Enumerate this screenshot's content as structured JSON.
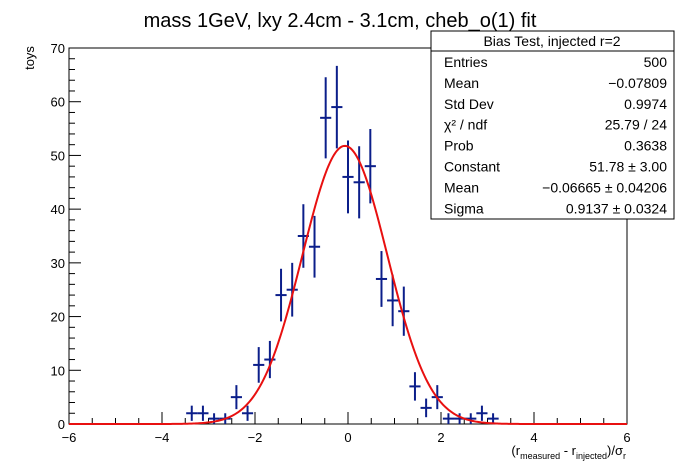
{
  "chart_data": {
    "type": "histogram-with-fit",
    "title": "mass 1GeV, lxy 2.4cm - 3.1cm, cheb_o(1) fit",
    "ylabel": "toys",
    "xlabel": {
      "open": "(r",
      "sub1": "measured",
      "mid": " - r",
      "sub2": "injected",
      "close": ")/σ",
      "sub3": "r"
    },
    "xlim": [
      -6,
      6
    ],
    "ylim": [
      0,
      70
    ],
    "xticks": [
      "−6",
      "−4",
      "−2",
      "0",
      "2",
      "4",
      "6"
    ],
    "yticks": [
      "0",
      "10",
      "20",
      "30",
      "40",
      "50",
      "60",
      "70"
    ],
    "bin_width": 0.24,
    "bins": [
      {
        "x": -3.36,
        "y": 2
      },
      {
        "x": -3.12,
        "y": 2
      },
      {
        "x": -2.88,
        "y": 1
      },
      {
        "x": -2.64,
        "y": 1
      },
      {
        "x": -2.4,
        "y": 5
      },
      {
        "x": -2.16,
        "y": 2
      },
      {
        "x": -1.92,
        "y": 11
      },
      {
        "x": -1.68,
        "y": 12
      },
      {
        "x": -1.44,
        "y": 24
      },
      {
        "x": -1.2,
        "y": 25
      },
      {
        "x": -0.96,
        "y": 35
      },
      {
        "x": -0.72,
        "y": 33
      },
      {
        "x": -0.48,
        "y": 57
      },
      {
        "x": -0.24,
        "y": 59
      },
      {
        "x": 0.0,
        "y": 46
      },
      {
        "x": 0.24,
        "y": 45
      },
      {
        "x": 0.48,
        "y": 48
      },
      {
        "x": 0.72,
        "y": 27
      },
      {
        "x": 0.96,
        "y": 23
      },
      {
        "x": 1.2,
        "y": 21
      },
      {
        "x": 1.44,
        "y": 7
      },
      {
        "x": 1.68,
        "y": 3
      },
      {
        "x": 1.92,
        "y": 5
      },
      {
        "x": 2.16,
        "y": 1
      },
      {
        "x": 2.4,
        "y": 1
      },
      {
        "x": 2.64,
        "y": 1
      },
      {
        "x": 2.88,
        "y": 2
      },
      {
        "x": 3.12,
        "y": 1
      }
    ],
    "fit": {
      "function": "gaus",
      "constant": 51.78,
      "mean": -0.06665,
      "sigma": 0.9137
    },
    "colors": {
      "points": "#0b1e8a",
      "fit": "#e81010"
    },
    "stats": {
      "title": "Bias Test, injected r=2",
      "placement": "top-right",
      "rows": [
        {
          "label": "Entries",
          "value": "500"
        },
        {
          "label": "Mean",
          "value": "−0.07809"
        },
        {
          "label": "Std Dev",
          "value": "0.9974"
        },
        {
          "label": "χ² / ndf",
          "value": "25.79 / 24"
        },
        {
          "label": "Prob",
          "value": "0.3638"
        },
        {
          "label": "Constant",
          "value": "51.78 ± 3.00"
        },
        {
          "label": "Mean",
          "value": "−0.06665 ± 0.04206"
        },
        {
          "label": "Sigma",
          "value": "0.9137 ± 0.0324"
        }
      ]
    }
  }
}
